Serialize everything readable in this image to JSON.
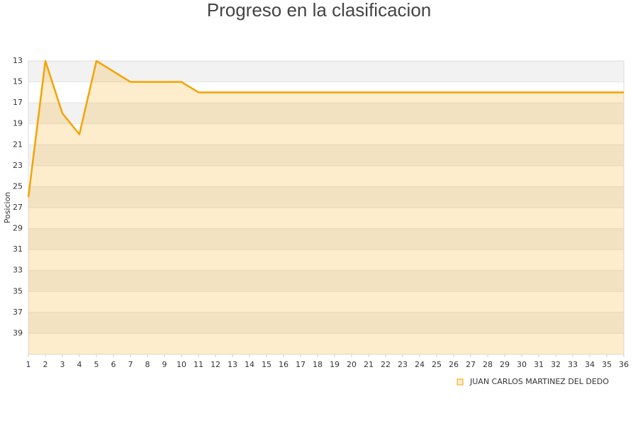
{
  "chart_data": {
    "type": "line",
    "title": "Progreso en la clasificacion",
    "y_label": "Posicion",
    "x": [
      1,
      2,
      3,
      4,
      5,
      6,
      7,
      8,
      9,
      10,
      11,
      12,
      13,
      14,
      15,
      16,
      17,
      18,
      19,
      20,
      21,
      22,
      23,
      24,
      25,
      26,
      27,
      28,
      29,
      30,
      31,
      32,
      33,
      34,
      35,
      36
    ],
    "series": [
      {
        "name": "JUAN CARLOS MARTINEZ DEL DEDO",
        "color": "#f5a300",
        "values": [
          26,
          13,
          18,
          20,
          13,
          14,
          15,
          15,
          15,
          15,
          16,
          16,
          16,
          16,
          16,
          16,
          16,
          16,
          16,
          16,
          16,
          16,
          16,
          16,
          16,
          16,
          16,
          16,
          16,
          16,
          16,
          16,
          16,
          16,
          16,
          16
        ]
      }
    ],
    "xlim": [
      1,
      36
    ],
    "xticks": [
      1,
      2,
      3,
      4,
      5,
      6,
      7,
      8,
      9,
      10,
      11,
      12,
      13,
      14,
      15,
      16,
      17,
      18,
      19,
      20,
      21,
      22,
      23,
      24,
      25,
      26,
      27,
      28,
      29,
      30,
      31,
      32,
      33,
      34,
      35,
      36
    ],
    "ylim": [
      13,
      41
    ],
    "yticks": [
      13,
      15,
      17,
      19,
      21,
      23,
      25,
      27,
      29,
      31,
      33,
      35,
      37,
      39
    ],
    "y_inverted": true,
    "band_colors": [
      "#f2f2f2",
      "#ffffff"
    ],
    "area_fill": true
  }
}
